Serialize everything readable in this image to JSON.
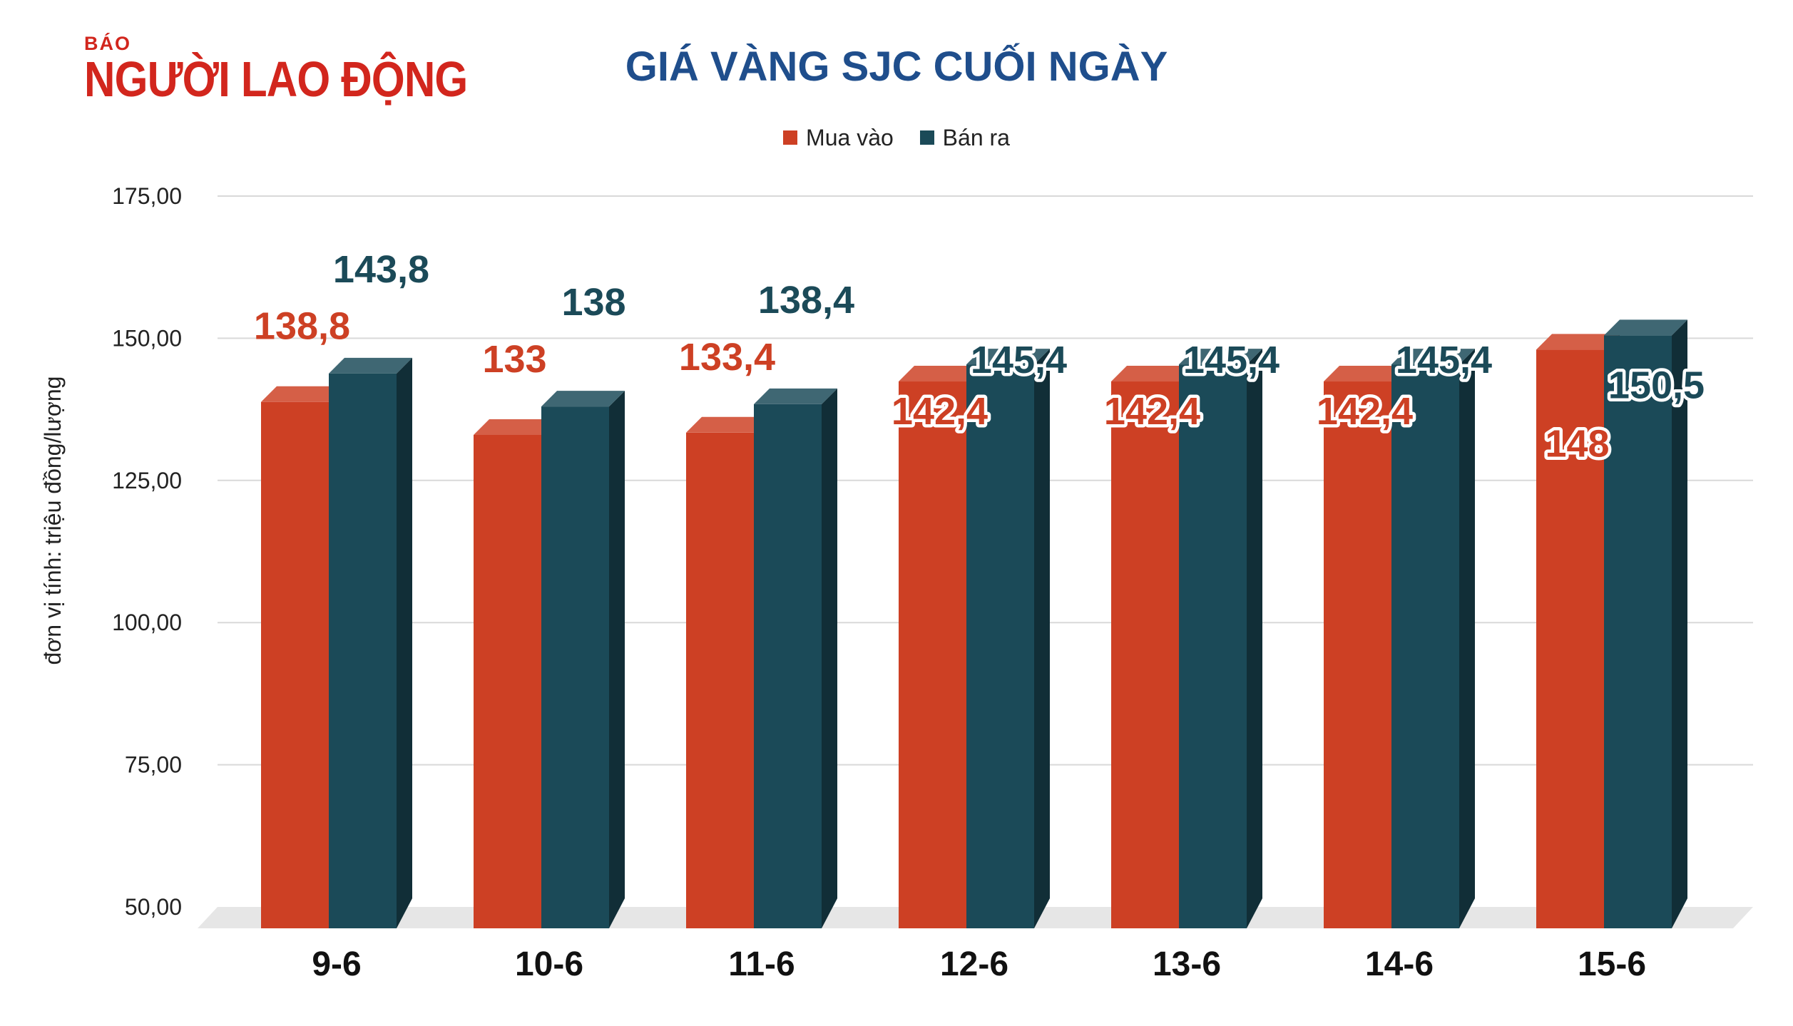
{
  "logo": {
    "small": "BÁO",
    "big": "NGƯỜI LAO ĐỘNG"
  },
  "colors": {
    "buy": "#cd4024",
    "sell": "#1b4a58",
    "title": "#1f4e8c",
    "logo": "#d2261d"
  },
  "chart_data": {
    "type": "bar",
    "title": "GIÁ VÀNG SJC CUỐI NGÀY",
    "ylabel": "đơn vị tính: triệu đồng/lượng",
    "xlabel": "",
    "categories": [
      "9-6",
      "10-6",
      "11-6",
      "12-6",
      "13-6",
      "14-6",
      "15-6"
    ],
    "series": [
      {
        "name": "Mua vào",
        "values": [
          138.8,
          133,
          133.4,
          142.4,
          142.4,
          142.4,
          148
        ],
        "labels": [
          "138,8",
          "133",
          "133,4",
          "142,4",
          "142,4",
          "142,4",
          "148"
        ]
      },
      {
        "name": "Bán ra",
        "values": [
          143.8,
          138,
          138.4,
          145.4,
          145.4,
          145.4,
          150.5
        ],
        "labels": [
          "143,8",
          "138",
          "138,4",
          "145,4",
          "145,4",
          "145,4",
          "150,5"
        ]
      }
    ],
    "ylim": [
      50,
      175
    ],
    "yticks": [
      50,
      75,
      100,
      125,
      150,
      175
    ],
    "ytick_labels": [
      "50,00",
      "75,00",
      "100,00",
      "125,00",
      "150,00",
      "175,00"
    ],
    "grid": true,
    "legend": "top-center",
    "style": "3d-bar"
  }
}
